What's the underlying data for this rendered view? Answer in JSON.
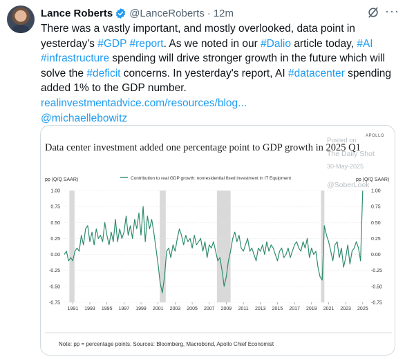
{
  "author": {
    "name": "Lance Roberts",
    "handle": "@LanceRoberts",
    "dot": "·",
    "time": "12m"
  },
  "tweet": {
    "l1_a": "There was a vastly important, and mostly overlooked, data point in",
    "l2_a": "yesterday's ",
    "l2_tag1": "#GDP",
    "l2_b": " ",
    "l2_tag2": "#report",
    "l2_c": ". As we noted in our ",
    "l2_tag3": "#Dalio",
    "l2_d": " article today, ",
    "l2_tag4": "#AI",
    "l3_tag": "#infrastructure",
    "l3_a": " spending will drive stronger growth in the future which will",
    "l4_a": "solve the ",
    "l4_tag": "#deficit",
    "l4_b": " concerns. In yesterday's report, AI ",
    "l4_tag2": "#datacenter",
    "l4_c": " spending",
    "l5": "added 1% to the GDP number.",
    "link": "realinvestmentadvice.com/resources/blog...",
    "mention": "@michaellebowitz"
  },
  "chart_data": {
    "type": "line",
    "title": "Data center investment added one percentage point to GDP growth in 2025 Q1",
    "brand": "APOLLO",
    "watermark_1": "Posted on",
    "watermark_2": "The Daily Shot",
    "watermark_3": "30-May-2025",
    "watermark_4": "@SoberLook",
    "ylabel_left": "pp (Q/Q SAAR)",
    "ylabel_right": "pp (Q/Q SAAR)",
    "legend": "Contribution to real GDP growth: nonresidential fixed investment in IT Equipment",
    "note": "Note: pp = percentage points. Sources: Bloomberg, Macrobond, Apollo Chief Economist",
    "ylim": [
      -0.75,
      1.0
    ],
    "yticks": [
      "1.00",
      "0.75",
      "0.50",
      "0.25",
      "0.00",
      "-0.25",
      "-0.50",
      "-0.75"
    ],
    "xticks": [
      "1991",
      "1993",
      "1995",
      "1997",
      "1999",
      "2001",
      "2003",
      "2005",
      "2007",
      "2009",
      "2011",
      "2013",
      "2015",
      "2017",
      "2019",
      "2021",
      "2023",
      "2025"
    ],
    "xlim": [
      1990.0,
      2025.5
    ],
    "recessions": [
      [
        1990.6,
        1991.2
      ],
      [
        2001.2,
        2001.9
      ],
      [
        2007.9,
        2009.5
      ],
      [
        2020.1,
        2020.5
      ]
    ],
    "series": [
      {
        "values": [
          [
            1990.0,
            0.0
          ],
          [
            1990.25,
            0.05
          ],
          [
            1990.5,
            -0.1
          ],
          [
            1990.75,
            -0.05
          ],
          [
            1991.0,
            -0.1
          ],
          [
            1991.25,
            0.05
          ],
          [
            1991.5,
            0.1
          ],
          [
            1991.75,
            0.05
          ],
          [
            1992.0,
            0.3
          ],
          [
            1992.25,
            0.15
          ],
          [
            1992.5,
            0.4
          ],
          [
            1992.75,
            0.45
          ],
          [
            1993.0,
            0.2
          ],
          [
            1993.25,
            0.35
          ],
          [
            1993.5,
            0.15
          ],
          [
            1993.75,
            0.4
          ],
          [
            1994.0,
            0.25
          ],
          [
            1994.25,
            0.3
          ],
          [
            1994.5,
            0.2
          ],
          [
            1994.75,
            0.5
          ],
          [
            1995.0,
            0.3
          ],
          [
            1995.25,
            0.15
          ],
          [
            1995.5,
            0.35
          ],
          [
            1995.75,
            0.2
          ],
          [
            1996.0,
            0.55
          ],
          [
            1996.25,
            0.2
          ],
          [
            1996.5,
            0.4
          ],
          [
            1996.75,
            0.25
          ],
          [
            1997.0,
            0.35
          ],
          [
            1997.25,
            0.6
          ],
          [
            1997.5,
            0.3
          ],
          [
            1997.75,
            0.45
          ],
          [
            1998.0,
            0.25
          ],
          [
            1998.25,
            0.55
          ],
          [
            1998.5,
            0.4
          ],
          [
            1998.75,
            0.65
          ],
          [
            1999.0,
            0.3
          ],
          [
            1999.25,
            0.75
          ],
          [
            1999.5,
            0.2
          ],
          [
            1999.75,
            0.6
          ],
          [
            2000.0,
            0.4
          ],
          [
            2000.25,
            0.55
          ],
          [
            2000.5,
            0.35
          ],
          [
            2000.75,
            0.1
          ],
          [
            2001.0,
            -0.15
          ],
          [
            2001.25,
            -0.45
          ],
          [
            2001.5,
            -0.6
          ],
          [
            2001.75,
            -0.35
          ],
          [
            2002.0,
            0.05
          ],
          [
            2002.25,
            0.1
          ],
          [
            2002.5,
            -0.05
          ],
          [
            2002.75,
            0.15
          ],
          [
            2003.0,
            0.05
          ],
          [
            2003.25,
            0.25
          ],
          [
            2003.5,
            0.4
          ],
          [
            2003.75,
            0.3
          ],
          [
            2004.0,
            0.15
          ],
          [
            2004.25,
            0.3
          ],
          [
            2004.5,
            0.2
          ],
          [
            2004.75,
            0.25
          ],
          [
            2005.0,
            0.1
          ],
          [
            2005.25,
            0.3
          ],
          [
            2005.5,
            0.15
          ],
          [
            2005.75,
            0.2
          ],
          [
            2006.0,
            0.25
          ],
          [
            2006.25,
            0.05
          ],
          [
            2006.5,
            0.2
          ],
          [
            2006.75,
            -0.05
          ],
          [
            2007.0,
            0.15
          ],
          [
            2007.25,
            0.1
          ],
          [
            2007.5,
            0.2
          ],
          [
            2007.75,
            0.05
          ],
          [
            2008.0,
            -0.1
          ],
          [
            2008.25,
            -0.05
          ],
          [
            2008.5,
            -0.25
          ],
          [
            2008.75,
            -0.5
          ],
          [
            2009.0,
            -0.35
          ],
          [
            2009.25,
            -0.1
          ],
          [
            2009.5,
            0.05
          ],
          [
            2009.75,
            0.25
          ],
          [
            2010.0,
            0.35
          ],
          [
            2010.25,
            0.2
          ],
          [
            2010.5,
            0.3
          ],
          [
            2010.75,
            0.1
          ],
          [
            2011.0,
            0.05
          ],
          [
            2011.25,
            0.15
          ],
          [
            2011.5,
            0.25
          ],
          [
            2011.75,
            0.05
          ],
          [
            2012.0,
            0.1
          ],
          [
            2012.25,
            0.0
          ],
          [
            2012.5,
            -0.1
          ],
          [
            2012.75,
            0.1
          ],
          [
            2013.0,
            0.05
          ],
          [
            2013.25,
            0.15
          ],
          [
            2013.5,
            0.0
          ],
          [
            2013.75,
            0.2
          ],
          [
            2014.0,
            0.05
          ],
          [
            2014.25,
            0.15
          ],
          [
            2014.5,
            0.1
          ],
          [
            2014.75,
            0.0
          ],
          [
            2015.0,
            -0.1
          ],
          [
            2015.25,
            0.05
          ],
          [
            2015.5,
            0.1
          ],
          [
            2015.75,
            -0.05
          ],
          [
            2016.0,
            0.0
          ],
          [
            2016.25,
            0.1
          ],
          [
            2016.5,
            -0.05
          ],
          [
            2016.75,
            0.05
          ],
          [
            2017.0,
            0.15
          ],
          [
            2017.25,
            0.2
          ],
          [
            2017.5,
            0.1
          ],
          [
            2017.75,
            0.05
          ],
          [
            2018.0,
            0.2
          ],
          [
            2018.25,
            0.1
          ],
          [
            2018.5,
            0.25
          ],
          [
            2018.75,
            -0.05
          ],
          [
            2019.0,
            0.1
          ],
          [
            2019.25,
            0.0
          ],
          [
            2019.5,
            0.05
          ],
          [
            2019.75,
            -0.2
          ],
          [
            2020.0,
            -0.35
          ],
          [
            2020.25,
            -0.4
          ],
          [
            2020.5,
            0.45
          ],
          [
            2020.75,
            0.3
          ],
          [
            2021.0,
            0.2
          ],
          [
            2021.25,
            0.05
          ],
          [
            2021.5,
            -0.1
          ],
          [
            2021.75,
            0.15
          ],
          [
            2022.0,
            0.2
          ],
          [
            2022.25,
            -0.05
          ],
          [
            2022.5,
            0.1
          ],
          [
            2022.75,
            -0.2
          ],
          [
            2023.0,
            -0.05
          ],
          [
            2023.25,
            0.15
          ],
          [
            2023.5,
            -0.15
          ],
          [
            2023.75,
            0.05
          ],
          [
            2024.0,
            0.1
          ],
          [
            2024.25,
            0.2
          ],
          [
            2024.5,
            0.1
          ],
          [
            2024.75,
            -0.1
          ],
          [
            2025.0,
            1.0
          ]
        ]
      }
    ]
  },
  "colors": {
    "accent": "#1d9bf0",
    "line": "#2e8b6e",
    "recession": "#d9d9d9",
    "verified": "#1d9bf0"
  },
  "icons": {
    "verified": "verified-badge-icon",
    "grok": "grok-icon",
    "more": "more-icon"
  }
}
